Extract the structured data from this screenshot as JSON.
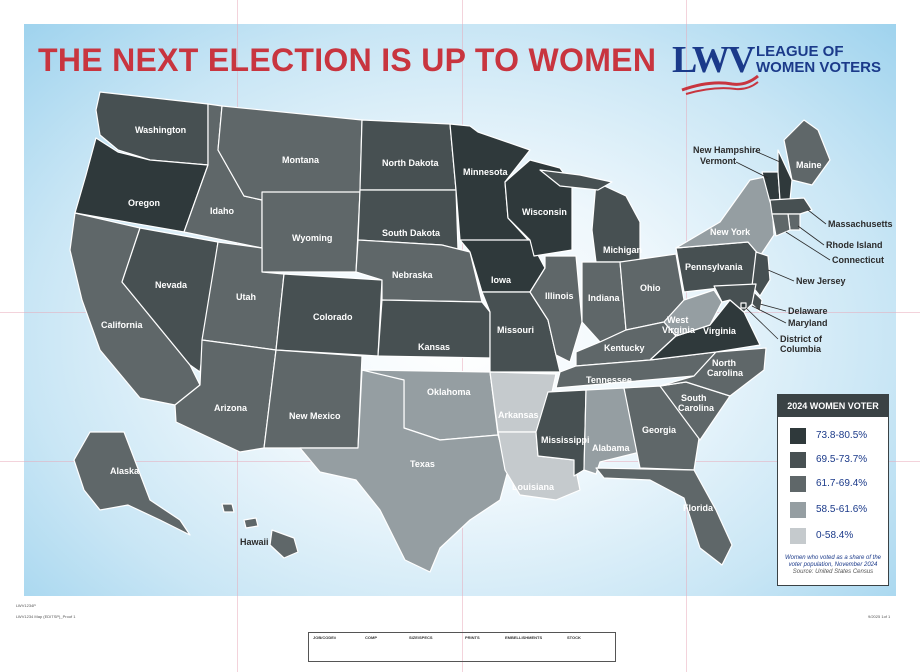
{
  "poster": {
    "title": "THE NEXT ELECTION IS UP TO WOMEN",
    "logo": {
      "mark": "LWV",
      "line1": "LEAGUE OF",
      "line2": "WOMEN VOTERS"
    }
  },
  "colors": {
    "title": "#c8353f",
    "brand_blue": "#1b3a8a",
    "tier1": "#2f393b",
    "tier2": "#475052",
    "tier3": "#5f6769",
    "tier4": "#959ea2",
    "tier5": "#c5cacd"
  },
  "legend": {
    "title": "2024 WOMEN VOTER",
    "bins": [
      {
        "label": "73.8-80.5%",
        "color": "#2f393b"
      },
      {
        "label": "69.5-73.7%",
        "color": "#475052"
      },
      {
        "label": "61.7-69.4%",
        "color": "#5f6769"
      },
      {
        "label": "58.5-61.6%",
        "color": "#959ea2"
      },
      {
        "label": "0-58.4%",
        "color": "#c5cacd"
      }
    ],
    "note": "Women who voted as a share of the voter population, November 2024",
    "source": "Source: United States Census"
  },
  "states": [
    {
      "name": "Washington",
      "tier": 2
    },
    {
      "name": "Oregon",
      "tier": 1
    },
    {
      "name": "California",
      "tier": 3
    },
    {
      "name": "Nevada",
      "tier": 2
    },
    {
      "name": "Idaho",
      "tier": 3
    },
    {
      "name": "Montana",
      "tier": 3
    },
    {
      "name": "Wyoming",
      "tier": 3
    },
    {
      "name": "Utah",
      "tier": 3
    },
    {
      "name": "Arizona",
      "tier": 3
    },
    {
      "name": "Colorado",
      "tier": 2
    },
    {
      "name": "New Mexico",
      "tier": 3
    },
    {
      "name": "North Dakota",
      "tier": 2
    },
    {
      "name": "South Dakota",
      "tier": 2
    },
    {
      "name": "Nebraska",
      "tier": 3
    },
    {
      "name": "Kansas",
      "tier": 2
    },
    {
      "name": "Oklahoma",
      "tier": 4
    },
    {
      "name": "Texas",
      "tier": 4
    },
    {
      "name": "Minnesota",
      "tier": 1
    },
    {
      "name": "Iowa",
      "tier": 1
    },
    {
      "name": "Missouri",
      "tier": 2
    },
    {
      "name": "Arkansas",
      "tier": 5
    },
    {
      "name": "Louisiana",
      "tier": 5
    },
    {
      "name": "Wisconsin",
      "tier": 1
    },
    {
      "name": "Illinois",
      "tier": 3
    },
    {
      "name": "Michigan",
      "tier": 2
    },
    {
      "name": "Indiana",
      "tier": 3
    },
    {
      "name": "Ohio",
      "tier": 3
    },
    {
      "name": "Kentucky",
      "tier": 3
    },
    {
      "name": "Tennessee",
      "tier": 3
    },
    {
      "name": "Mississippi",
      "tier": 2
    },
    {
      "name": "Alabama",
      "tier": 4
    },
    {
      "name": "Georgia",
      "tier": 3
    },
    {
      "name": "Florida",
      "tier": 3
    },
    {
      "name": "South Carolina",
      "tier": 3
    },
    {
      "name": "North Carolina",
      "tier": 3
    },
    {
      "name": "Virginia",
      "tier": 1
    },
    {
      "name": "West Virginia",
      "tier": 4
    },
    {
      "name": "Pennsylvania",
      "tier": 2
    },
    {
      "name": "New York",
      "tier": 4
    },
    {
      "name": "Vermont",
      "tier": 1
    },
    {
      "name": "New Hampshire",
      "tier": 1
    },
    {
      "name": "Maine",
      "tier": 3
    },
    {
      "name": "Massachusetts",
      "tier": 2
    },
    {
      "name": "Rhode Island",
      "tier": 3
    },
    {
      "name": "Connecticut",
      "tier": 3
    },
    {
      "name": "New Jersey",
      "tier": 2
    },
    {
      "name": "Delaware",
      "tier": 2
    },
    {
      "name": "Maryland",
      "tier": 2
    },
    {
      "name": "District of Columbia",
      "tier": 1
    },
    {
      "name": "Alaska",
      "tier": 3
    },
    {
      "name": "Hawaii",
      "tier": 3
    }
  ],
  "labels": {
    "Washington": "Washington",
    "Oregon": "Oregon",
    "California": "California",
    "Nevada": "Nevada",
    "Idaho": "Idaho",
    "Montana": "Montana",
    "Wyoming": "Wyoming",
    "Utah": "Utah",
    "Arizona": "Arizona",
    "Colorado": "Colorado",
    "New Mexico": "New Mexico",
    "North Dakota": "North Dakota",
    "South Dakota": "South Dakota",
    "Nebraska": "Nebraska",
    "Kansas": "Kansas",
    "Oklahoma": "Oklahoma",
    "Texas": "Texas",
    "Minnesota": "Minnesota",
    "Iowa": "Iowa",
    "Missouri": "Missouri",
    "Arkansas": "Arkansas",
    "Louisiana": "Louisiana",
    "Wisconsin": "Wisconsin",
    "Illinois": "Illinois",
    "Michigan": "Michigan",
    "Indiana": "Indiana",
    "Ohio": "Ohio",
    "Kentucky": "Kentucky",
    "Tennessee": "Tennessee",
    "Mississippi": "Mississippi",
    "Alabama": "Alabama",
    "Georgia": "Georgia",
    "Florida": "Florida",
    "South_Carolina_1": "South",
    "South_Carolina_2": "Carolina",
    "North_Carolina_1": "North",
    "North_Carolina_2": "Carolina",
    "Virginia": "Virginia",
    "West_Virginia_1": "West",
    "West_Virginia_2": "Virginia",
    "Pennsylvania": "Pennsylvania",
    "New York": "New York",
    "Vermont": "Vermont",
    "New Hampshire": "New Hampshire",
    "Maine": "Maine",
    "Massachusetts": "Massachusetts",
    "Rhode Island": "Rhode Island",
    "Connecticut": "Connecticut",
    "New Jersey": "New Jersey",
    "Delaware": "Delaware",
    "Maryland": "Maryland",
    "DC_1": "District of",
    "DC_2": "Columbia",
    "Alaska": "Alaska",
    "Hawaii": "Hawaii"
  },
  "footer": {
    "headers": [
      "JOB/CODE#",
      "COMP",
      "SIZE/SPECS",
      "PRINTS",
      "EMBELLISHMENTS",
      "STOCK"
    ],
    "slug_left": "LWV1234 Map (EDITSP)_Proof 1",
    "slug_right": "9/2025 1of 1"
  }
}
